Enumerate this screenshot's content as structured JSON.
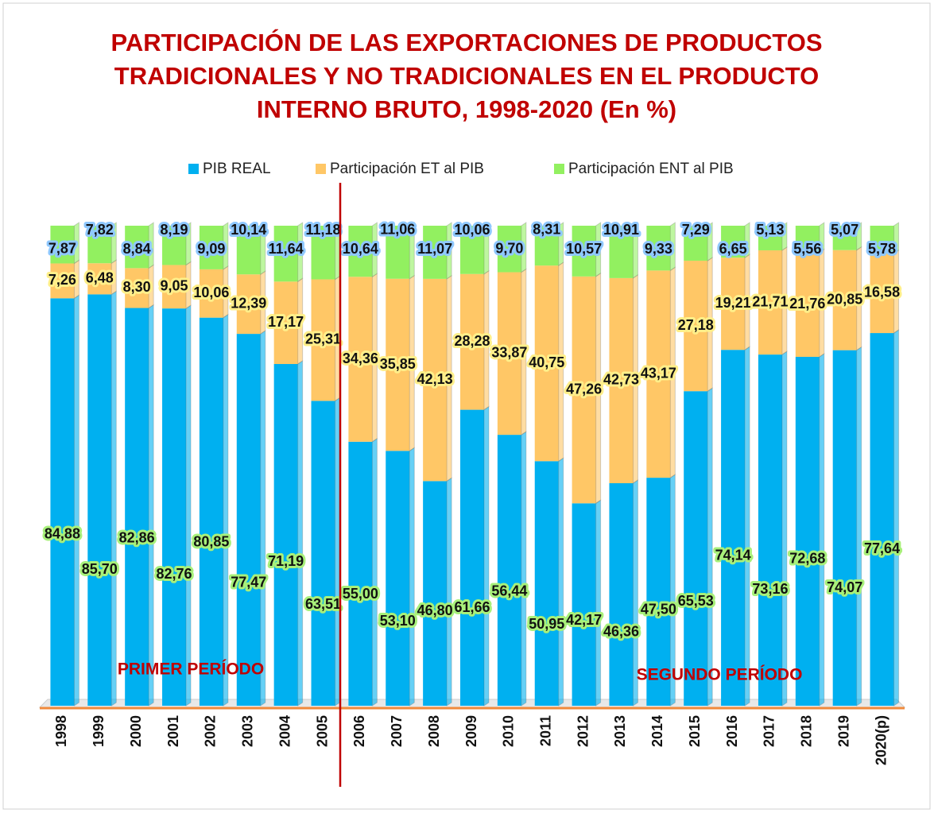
{
  "chart_data": {
    "type": "stacked_bar",
    "title": [
      "PARTICIPACIÓN DE LAS EXPORTACIONES DE PRODUCTOS",
      "TRADICIONALES Y NO TRADICIONALES EN EL PRODUCTO",
      "INTERNO BRUTO, 1998-2020 (En %)"
    ],
    "categories": [
      "1998",
      "1999",
      "2000",
      "2001",
      "2002",
      "2003",
      "2004",
      "2005",
      "2006",
      "2007",
      "2008",
      "2009",
      "2010",
      "2011",
      "2012",
      "2013",
      "2014",
      "2015",
      "2016",
      "2017",
      "2018",
      "2019",
      "2020(p)"
    ],
    "ylim": [
      0,
      100
    ],
    "annotations": [
      "PRIMER PERÍODO",
      "SEGUNDO PERÍODO"
    ],
    "series": [
      {
        "name": "PIB REAL",
        "color": "#00b0f0",
        "values": [
          84.88,
          85.7,
          82.86,
          82.76,
          80.85,
          77.47,
          71.19,
          63.51,
          55.0,
          53.1,
          46.8,
          61.66,
          56.44,
          50.95,
          42.17,
          46.36,
          47.5,
          65.53,
          74.14,
          73.16,
          72.68,
          74.07,
          77.64
        ],
        "value_labels": [
          "84,88",
          "85,70",
          "82,86",
          "82,76",
          "80,85",
          "77,47",
          "71,19",
          "63,51",
          "55,00",
          "53,10",
          "46,80",
          "61,66",
          "56,44",
          "50,95",
          "42,17",
          "46,36",
          "47,50",
          "65,53",
          "74,14",
          "73,16",
          "72,68",
          "74,07",
          "77,64"
        ]
      },
      {
        "name": "Participación ET al PIB",
        "color": "#ffc766",
        "values": [
          7.26,
          6.48,
          8.3,
          9.05,
          10.06,
          12.39,
          17.17,
          25.31,
          34.36,
          35.85,
          42.13,
          28.28,
          33.87,
          40.75,
          47.26,
          42.73,
          43.17,
          27.18,
          19.21,
          21.71,
          21.76,
          20.85,
          16.58
        ],
        "value_labels": [
          "7,26",
          "6,48",
          "8,30",
          "9,05",
          "10,06",
          "12,39",
          "17,17",
          "25,31",
          "34,36",
          "35,85",
          "42,13",
          "28,28",
          "33,87",
          "40,75",
          "47,26",
          "42,73",
          "43,17",
          "27,18",
          "19,21",
          "21,71",
          "21,76",
          "20,85",
          "16,58"
        ]
      },
      {
        "name": "Participación ENT al PIB",
        "color": "#92f060",
        "values": [
          7.87,
          7.82,
          8.84,
          8.19,
          9.09,
          10.14,
          11.64,
          11.18,
          10.64,
          11.06,
          11.07,
          10.06,
          9.7,
          8.31,
          10.57,
          10.91,
          9.33,
          7.29,
          6.65,
          5.13,
          5.56,
          5.07,
          5.78
        ],
        "value_labels": [
          "7,87",
          "7,82",
          "8,84",
          "8,19",
          "9,09",
          "10,14",
          "11,64",
          "11,18",
          "10,64",
          "11,06",
          "11,07",
          "10,06",
          "9,70",
          "8,31",
          "10,57",
          "10,91",
          "9,33",
          "7,29",
          "6,65",
          "5,13",
          "5,56",
          "5,07",
          "5,78"
        ]
      }
    ]
  }
}
